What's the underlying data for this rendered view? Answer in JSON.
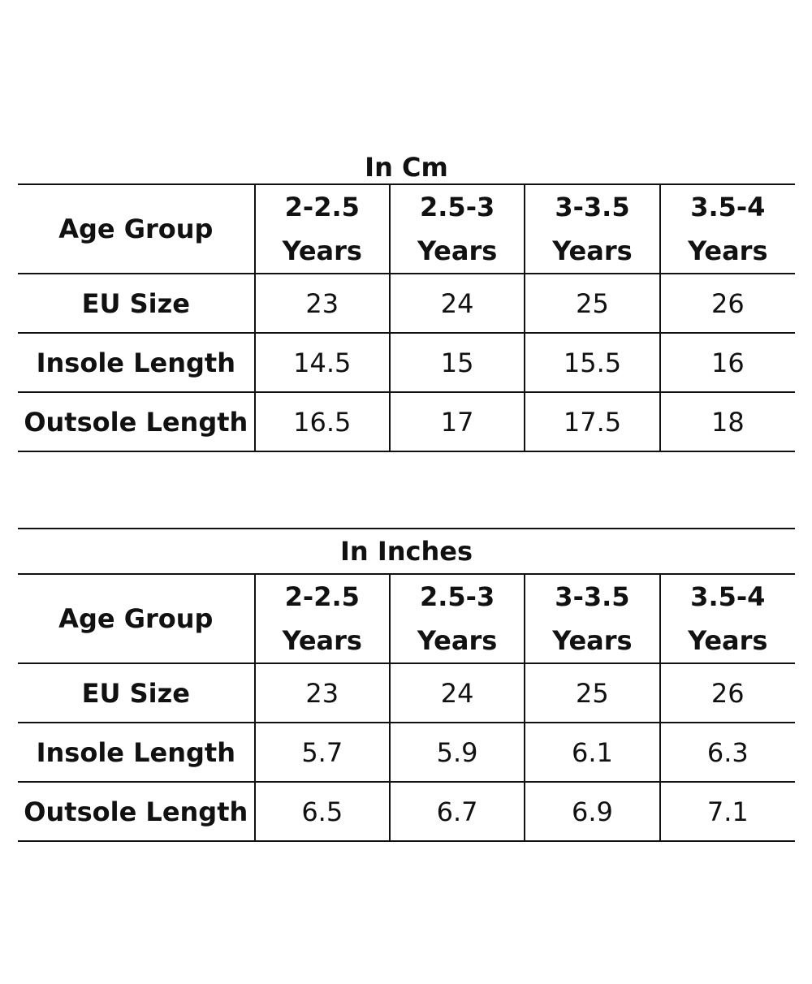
{
  "tables": [
    {
      "title": "In Cm",
      "row_header": "Age Group",
      "columns": [
        {
          "line1": "2-2.5",
          "line2": "Years"
        },
        {
          "line1": "2.5-3",
          "line2": "Years"
        },
        {
          "line1": "3-3.5",
          "line2": "Years"
        },
        {
          "line1": "3.5-4",
          "line2": "Years"
        }
      ],
      "rows": [
        {
          "label": "EU Size",
          "values": [
            "23",
            "24",
            "25",
            "26"
          ]
        },
        {
          "label": "Insole Length",
          "values": [
            "14.5",
            "15",
            "15.5",
            "16"
          ]
        },
        {
          "label": "Outsole Length",
          "values": [
            "16.5",
            "17",
            "17.5",
            "18"
          ]
        }
      ]
    },
    {
      "title": "In Inches",
      "row_header": "Age Group",
      "columns": [
        {
          "line1": "2-2.5",
          "line2": "Years"
        },
        {
          "line1": "2.5-3",
          "line2": "Years"
        },
        {
          "line1": "3-3.5",
          "line2": "Years"
        },
        {
          "line1": "3.5-4",
          "line2": "Years"
        }
      ],
      "rows": [
        {
          "label": "EU Size",
          "values": [
            "23",
            "24",
            "25",
            "26"
          ]
        },
        {
          "label": "Insole Length",
          "values": [
            "5.7",
            "5.9",
            "6.1",
            "6.3"
          ]
        },
        {
          "label": "Outsole Length",
          "values": [
            "6.5",
            "6.7",
            "6.9",
            "7.1"
          ]
        }
      ]
    }
  ]
}
